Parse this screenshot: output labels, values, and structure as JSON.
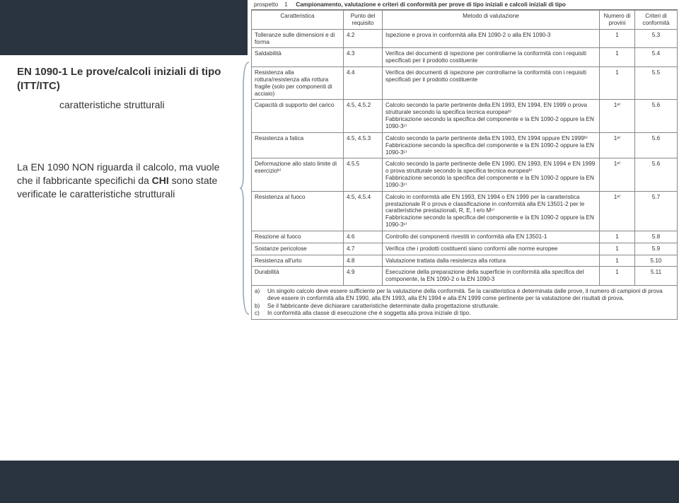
{
  "left": {
    "title": "EN 1090-1\nLe prove/calcoli iniziali di tipo (ITT/ITC)",
    "subtitle": "caratteristiche strutturali",
    "para_1": "La EN 1090 NON riguarda il calcolo, ma vuole che il fabbricante specifichi da ",
    "para_chi": "CHI",
    "para_2": " sono state verificate le caratteristiche strutturali"
  },
  "prospetto": {
    "label": "prospetto",
    "num": "1",
    "title": "Campionamento, valutazione e criteri di conformità per prove di tipo iniziali e calcoli iniziali di tipo"
  },
  "headers": {
    "c1": "Caratteristica",
    "c2": "Punto del requisito",
    "c3": "Metodo di valutazione",
    "c4": "Numero di provini",
    "c5": "Criteri di conformità"
  },
  "rows": [
    {
      "c1": "Tolleranze sulle dimensioni e di forma",
      "c2": "4.2",
      "c3": "Ispezione e prova in conformità alla EN 1090-2 o alla EN 1090-3",
      "c4": "1",
      "c5": "5.3"
    },
    {
      "c1": "Saldabilità",
      "c2": "4.3",
      "c3": "Verifica dei documenti di ispezione per controllarne la conformità con i requisiti specificati per il prodotto costituente",
      "c4": "1",
      "c5": "5.4"
    },
    {
      "c1": "Resistenza alla rottura/resistenza alla rottura fragile (solo per componenti di acciaio)",
      "c2": "4.4",
      "c3": "Verifica dei documenti di ispezione per controllarne la conformità con i requisiti specificati per il prodotto costituente",
      "c4": "1",
      "c5": "5.5"
    },
    {
      "c1": "Capacità di supporto del carico",
      "c2": "4.5, 4.5.2",
      "c3": "Calcolo secondo la parte pertinente della EN 1993, EN 1994, EN 1999 o prova strutturale secondo la specifica tecnica europeaᵇ⁾\nFabbricazione secondo la specifica del componente e la EN 1090-2 oppure la EN 1090-3ᶜ⁾",
      "c4": "1ᵃ⁾",
      "c5": "5.6"
    },
    {
      "c1": "Resistenza a fatica",
      "c2": "4.5, 4.5.3",
      "c3": "Calcolo secondo la parte pertinente della EN 1993, EN 1994 oppure EN 1999ᵇ⁾\nFabbricazione secondo la specifica del componente e la EN 1090-2 oppure la EN 1090-3ᶜ⁾",
      "c4": "1ᵃ⁾",
      "c5": "5.6"
    },
    {
      "c1": "Deformazione allo stato limite di esercizioᵇ⁾",
      "c2": "4.5.5",
      "c3": "Calcolo secondo la parte pertinente delle EN 1990, EN 1993, EN 1994 e EN 1999 o prova strutturale secondo la specifica tecnica europeaᵇ⁾\nFabbricazione secondo la specifica del componente e la EN 1090-2 oppure la EN 1090-3ᶜ⁾",
      "c4": "1ᵃ⁾",
      "c5": "5.6"
    },
    {
      "c1": "Resistenza al fuoco",
      "c2": "4.5, 4.5.4",
      "c3": "Calcolo in conformità alle EN 1993, EN 1994 o EN 1999 per la caratteristica prestazionale R o prova e classificazione in conformità alla EN 13501-2 per le caratteristiche prestazionali, R, E, I e/o Mᶜ⁾\nFabbricazione secondo la specifica del componente e la EN 1090-2 oppure la EN 1090-3ᶜ⁾",
      "c4": "1ᵃ⁾",
      "c5": "5.7"
    },
    {
      "c1": "Reazione al fuoco",
      "c2": "4.6",
      "c3": "Controllo dei componenti rivestiti in conformità alla EN 13501-1",
      "c4": "1",
      "c5": "5.8"
    },
    {
      "c1": "Sostanze pericolose",
      "c2": "4.7",
      "c3": "Verifica che i prodotti costituenti siano conformi alle norme europee",
      "c4": "1",
      "c5": "5.9"
    },
    {
      "c1": "Resistenza all'urto",
      "c2": "4.8",
      "c3": "Valutazione trattata dalla resistenza alla rottura",
      "c4": "1",
      "c5": "5.10"
    },
    {
      "c1": "Durabilità",
      "c2": "4.9",
      "c3": "Esecuzione della preparazione della superficie in conformità alla specifica del componente, la EN 1090-2 o la EN 1090-3",
      "c4": "1",
      "c5": "5.11"
    }
  ],
  "footnotes": {
    "a": "Un singolo calcolo deve essere sufficiente per la valutazione della conformità. Se la caratteristica è determinata dalle prove, il numero di campioni di prova deve essere in conformità alla EN 1990, alla EN 1993, alla EN 1994 e alla EN 1999 come pertinente per la valutazione dei risultati di prova.",
    "b": "Se il fabbricante deve dichiarare caratteristiche determinate dalla progettazione strutturale.",
    "c": "In conformità alla classe di esecuzione che è soggetta alla prova iniziale di tipo."
  }
}
